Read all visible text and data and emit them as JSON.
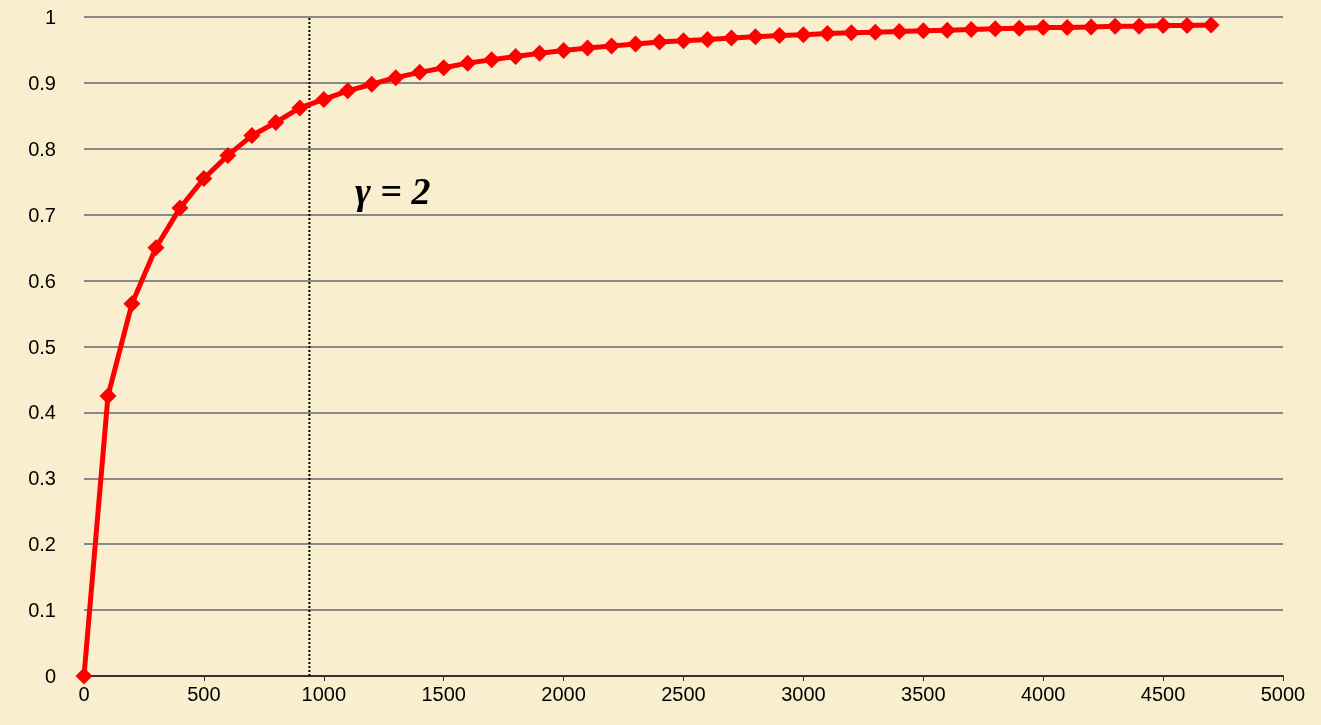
{
  "chart_data": {
    "type": "line",
    "x": [
      0,
      100,
      200,
      300,
      400,
      500,
      600,
      700,
      800,
      900,
      1000,
      1100,
      1200,
      1300,
      1400,
      1500,
      1600,
      1700,
      1800,
      1900,
      2000,
      2100,
      2200,
      2300,
      2400,
      2500,
      2600,
      2700,
      2800,
      2900,
      3000,
      3100,
      3200,
      3300,
      3400,
      3500,
      3600,
      3700,
      3800,
      3900,
      4000,
      4100,
      4200,
      4300,
      4400,
      4500,
      4600,
      4700
    ],
    "series": [
      {
        "color": "#ff0000",
        "values": [
          0,
          0.425,
          0.565,
          0.65,
          0.71,
          0.755,
          0.79,
          0.82,
          0.84,
          0.862,
          0.875,
          0.888,
          0.898,
          0.908,
          0.916,
          0.923,
          0.93,
          0.935,
          0.94,
          0.945,
          0.949,
          0.953,
          0.956,
          0.959,
          0.962,
          0.964,
          0.966,
          0.968,
          0.97,
          0.972,
          0.973,
          0.975,
          0.976,
          0.977,
          0.978,
          0.979,
          0.98,
          0.981,
          0.982,
          0.983,
          0.984,
          0.984,
          0.985,
          0.986,
          0.986,
          0.987,
          0.987,
          0.988
        ]
      }
    ],
    "xlim": [
      0,
      5000
    ],
    "xticks": [
      0,
      500,
      1000,
      1500,
      2000,
      2500,
      3000,
      3500,
      4000,
      4500,
      5000
    ],
    "ylim": [
      0,
      1
    ],
    "yticks": [
      0,
      0.1,
      0.2,
      0.3,
      0.4,
      0.5,
      0.6,
      0.7,
      0.8,
      0.9,
      1
    ],
    "ref_lines": [
      {
        "axis": "x",
        "value": 940,
        "color": "#000000",
        "line_style": "dotted"
      }
    ],
    "annotations": [
      "γ = 2"
    ],
    "grid": "y",
    "marker": "diamond",
    "line_style": "solid"
  }
}
